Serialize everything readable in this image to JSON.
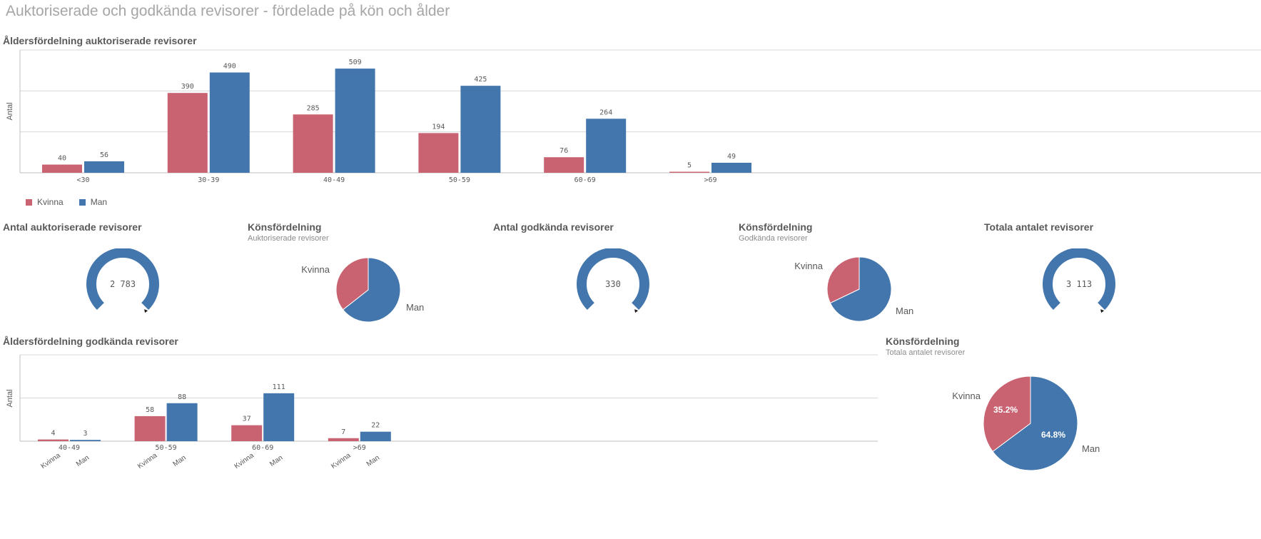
{
  "page_title": "Auktoriserade och godkända revisorer - fördelade på kön och ålder",
  "colors": {
    "kvinna": "#c96371",
    "man": "#4376ac",
    "grid": "#d9d9d9",
    "axis": "#bfbfbf"
  },
  "legend": {
    "kvinna": "Kvinna",
    "man": "Man"
  },
  "chart_data": [
    {
      "id": "bar_auktoriserade",
      "type": "bar",
      "title": "Åldersfördelning auktoriserade revisorer",
      "ylabel": "Antal",
      "categories": [
        "<30",
        "30-39",
        "40-49",
        "50-59",
        "60-69",
        ">69"
      ],
      "series": [
        {
          "name": "Kvinna",
          "values": [
            40,
            390,
            285,
            194,
            76,
            5
          ]
        },
        {
          "name": "Man",
          "values": [
            56,
            490,
            509,
            425,
            264,
            49
          ]
        }
      ],
      "ylim": [
        0,
        600
      ],
      "grid": true,
      "legend": "bottom-left"
    },
    {
      "id": "kpi_auktoriserade",
      "type": "gauge",
      "title": "Antal auktoriserade revisorer",
      "value_label": "2 783"
    },
    {
      "id": "pie_auktoriserade",
      "type": "pie",
      "title": "Könsfördelning",
      "subtitle": "Auktoriserade revisorer",
      "labels": [
        "Kvinna",
        "Man"
      ],
      "values": [
        990,
        1793
      ]
    },
    {
      "id": "kpi_godkanda",
      "type": "gauge",
      "title": "Antal godkända revisorer",
      "value_label": "330"
    },
    {
      "id": "pie_godkanda",
      "type": "pie",
      "title": "Könsfördelning",
      "subtitle": "Godkända revisorer",
      "labels": [
        "Kvinna",
        "Man"
      ],
      "values": [
        106,
        224
      ]
    },
    {
      "id": "kpi_totala",
      "type": "gauge",
      "title": "Totala antalet revisorer",
      "value_label": "3 113"
    },
    {
      "id": "bar_godkanda",
      "type": "bar",
      "title": "Åldersfördelning godkända revisorer",
      "ylabel": "Antal",
      "categories": [
        "40-49",
        "50-59",
        "60-69",
        ">69"
      ],
      "series": [
        {
          "name": "Kvinna",
          "values": [
            4,
            58,
            37,
            7
          ]
        },
        {
          "name": "Man",
          "values": [
            3,
            88,
            111,
            22
          ]
        }
      ],
      "ylim": [
        0,
        200
      ],
      "grid": true
    },
    {
      "id": "pie_totala",
      "type": "pie",
      "title": "Könsfördelning",
      "subtitle": "Totala antalet revisorer",
      "labels": [
        "Kvinna",
        "Man"
      ],
      "values": [
        35.2,
        64.8
      ],
      "value_labels": [
        "35.2%",
        "64.8%"
      ]
    }
  ]
}
